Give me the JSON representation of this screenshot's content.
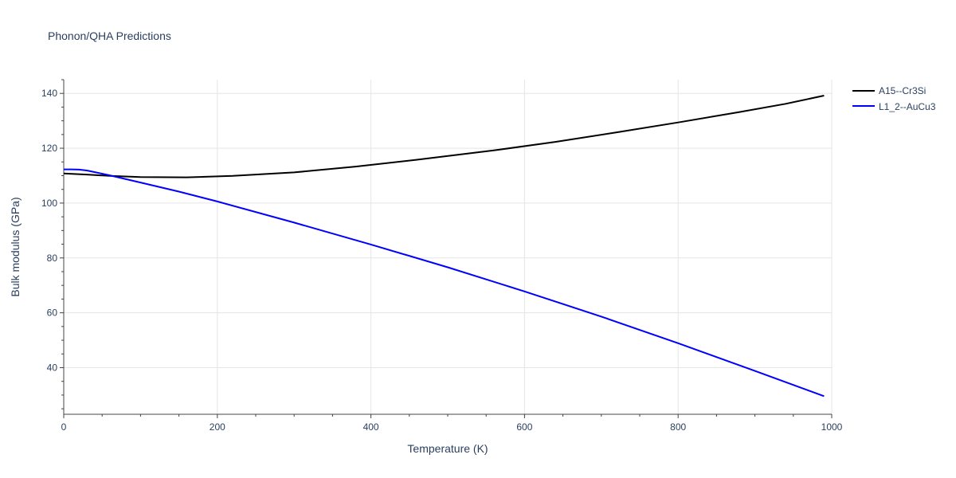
{
  "chart_data": {
    "type": "line",
    "title": "Phonon/QHA Predictions",
    "xlabel": "Temperature (K)",
    "ylabel": "Bulk modulus (GPa)",
    "xlim": [
      0,
      1000
    ],
    "ylim": [
      23,
      145
    ],
    "x_ticks": [
      0,
      200,
      400,
      600,
      800,
      1000
    ],
    "y_ticks": [
      40,
      60,
      80,
      100,
      120,
      140
    ],
    "grid": true,
    "legend_position": "top-right",
    "series": [
      {
        "name": "A15--Cr3Si",
        "color": "#000000",
        "x": [
          0,
          30,
          60,
          100,
          160,
          220,
          300,
          380,
          460,
          560,
          640,
          720,
          800,
          880,
          940,
          990
        ],
        "y": [
          110.8,
          110.4,
          109.9,
          109.5,
          109.4,
          109.9,
          111.2,
          113.3,
          115.8,
          119.2,
          122.3,
          125.8,
          129.4,
          133.2,
          136.2,
          139.2
        ]
      },
      {
        "name": "L1_2--AuCu3",
        "color": "#0000ff",
        "x": [
          0,
          10,
          20,
          30,
          40,
          60,
          80,
          100,
          150,
          200,
          300,
          400,
          500,
          600,
          700,
          800,
          900,
          990
        ],
        "y": [
          112.3,
          112.3,
          112.2,
          111.9,
          111.3,
          110.1,
          108.8,
          107.5,
          104.2,
          100.6,
          92.9,
          84.9,
          76.6,
          67.8,
          58.6,
          48.9,
          38.8,
          29.6
        ]
      }
    ]
  }
}
